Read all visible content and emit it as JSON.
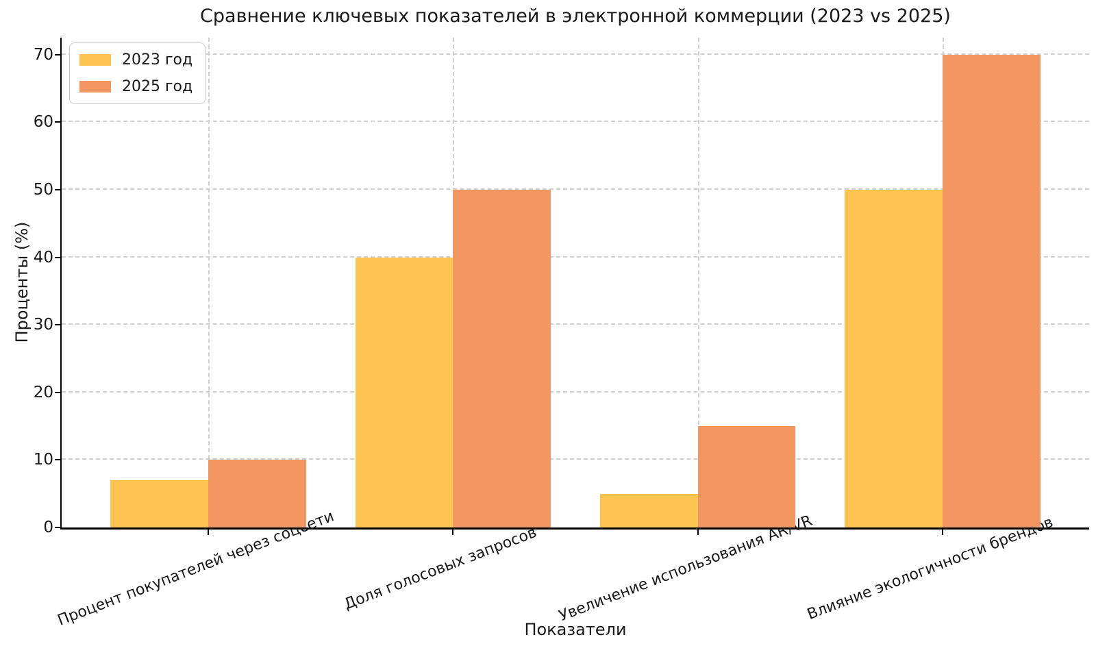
{
  "title": "Сравнение ключевых показателей в электронной коммерции (2023 vs 2025)",
  "chart_data": {
    "type": "bar",
    "title": "Сравнение ключевых показателей в электронной коммерции (2023 vs 2025)",
    "categories": [
      "Процент покупателей через соцсети",
      "Доля голосовых запросов",
      "Увеличение использования AR/VR",
      "Влияние экологичности брендов"
    ],
    "series": [
      {
        "name": "2023 год",
        "color": "#FDC54F",
        "values": [
          7,
          40,
          5,
          50
        ]
      },
      {
        "name": "2025 год",
        "color": "#F49661",
        "values": [
          10,
          50,
          15,
          70
        ]
      }
    ],
    "xlabel": "Показатели",
    "ylabel": "Проценты (%)",
    "ylim": [
      0,
      72.5
    ],
    "yticks": [
      0,
      10,
      20,
      30,
      40,
      50,
      60,
      70
    ],
    "grid": "dashed, both axes",
    "legend_position": "upper left",
    "bar_width_data_units": 0.4,
    "xlim": [
      -0.6,
      3.6
    ]
  }
}
